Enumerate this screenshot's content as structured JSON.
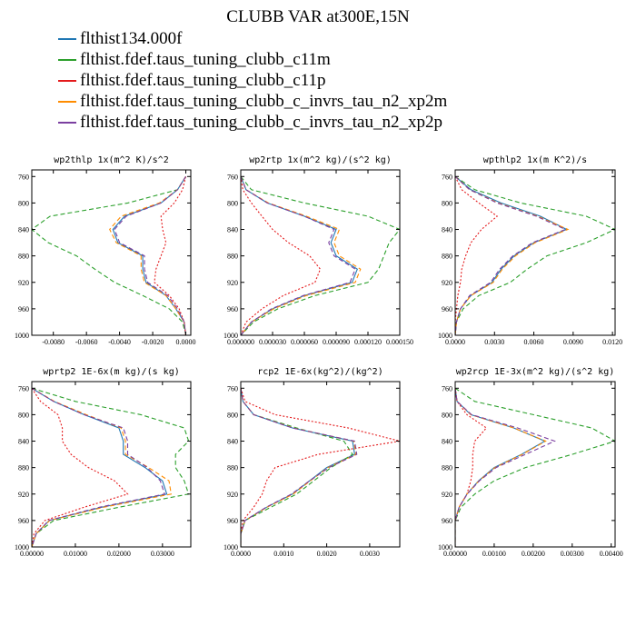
{
  "title": "CLUBB VAR at300E,15N",
  "legend": [
    {
      "label": "flthist134.000f",
      "color": "#1f77b4"
    },
    {
      "label": "flthist.fdef.taus_tuning_clubb_c11m",
      "color": "#2ca02c"
    },
    {
      "label": "flthist.fdef.taus_tuning_clubb_c11p",
      "color": "#e41a1c"
    },
    {
      "label": "flthist.fdef.taus_tuning_clubb_c_invrs_tau_n2_xp2m",
      "color": "#ff8c00"
    },
    {
      "label": "flthist.fdef.taus_tuning_clubb_c_invrs_tau_n2_xp2p",
      "color": "#7b3fa0"
    }
  ],
  "chart_data": [
    {
      "type": "line",
      "title": "wp2thlp  1x(m^2 K)/s^2",
      "xlim": [
        -0.0093,
        0.0003
      ],
      "ylim": [
        1000,
        750
      ],
      "xticks": [
        -0.008,
        -0.006,
        -0.004,
        -0.002,
        0.0
      ],
      "xtick_labels": [
        "-0.0080",
        "-0.0060",
        "-0.0040",
        "-0.0020",
        "0.0000"
      ],
      "yticks": [
        760,
        800,
        840,
        880,
        920,
        960,
        1000
      ],
      "y": [
        760,
        780,
        800,
        820,
        840,
        860,
        880,
        900,
        920,
        940,
        960,
        980,
        1000
      ],
      "series": [
        {
          "name": "flthist134.000f",
          "dash": "solid",
          "values": [
            0,
            -0.0005,
            -0.0015,
            -0.0037,
            -0.0044,
            -0.0041,
            -0.0026,
            -0.0026,
            -0.0024,
            -0.0012,
            -0.0006,
            -0.0001,
            0
          ]
        },
        {
          "name": "flthist.fdef.taus_tuning_clubb_c11m",
          "dash": "dashed",
          "values": [
            0,
            -0.0005,
            -0.0035,
            -0.0082,
            -0.0093,
            -0.0083,
            -0.0066,
            -0.0055,
            -0.0043,
            -0.0026,
            -0.001,
            -0.0002,
            0
          ]
        },
        {
          "name": "flthist.fdef.taus_tuning_clubb_c11p",
          "dash": "dotted",
          "values": [
            0,
            -0.0002,
            -0.0007,
            -0.0015,
            -0.0014,
            -0.0012,
            -0.0015,
            -0.0018,
            -0.0019,
            -0.001,
            -0.0004,
            -0.0001,
            0
          ]
        },
        {
          "name": "flthist.fdef.taus_tuning_clubb_c_invrs_tau_n2_xp2m",
          "dash": "dashed",
          "values": [
            0,
            -0.0005,
            -0.0016,
            -0.0039,
            -0.0046,
            -0.0042,
            -0.0027,
            -0.0027,
            -0.0025,
            -0.0012,
            -0.0006,
            -0.0001,
            0
          ]
        },
        {
          "name": "flthist.fdef.taus_tuning_clubb_c_invrs_tau_n2_xp2p",
          "dash": "dashed",
          "values": [
            0,
            -0.0005,
            -0.0015,
            -0.0036,
            -0.0043,
            -0.004,
            -0.0025,
            -0.0025,
            -0.0023,
            -0.0011,
            -0.0005,
            -0.0001,
            0
          ]
        }
      ]
    },
    {
      "type": "line",
      "title": "wp2rtp  1x(m^2 kg)/(s^2 kg)",
      "xlim": [
        0,
        0.00015
      ],
      "ylim": [
        1000,
        750
      ],
      "xticks": [
        0,
        3e-05,
        6e-05,
        9e-05,
        0.00012,
        0.00015
      ],
      "xtick_labels": [
        "0.000000",
        "0.000030",
        "0.000060",
        "0.000090",
        "0.000120",
        "0.000150"
      ],
      "yticks": [
        760,
        800,
        840,
        880,
        920,
        960,
        1000
      ],
      "y": [
        760,
        780,
        800,
        820,
        840,
        860,
        880,
        900,
        920,
        940,
        960,
        980,
        1000
      ],
      "series": [
        {
          "name": "flthist134.000f",
          "dash": "solid",
          "values": [
            0,
            5e-06,
            2.5e-05,
            6e-05,
            9e-05,
            8.5e-05,
            9e-05,
            0.00011,
            0.000105,
            6e-05,
            3e-05,
            1e-05,
            0
          ]
        },
        {
          "name": "flthist.fdef.taus_tuning_clubb_c11m",
          "dash": "dashed",
          "values": [
            0,
            1e-05,
            6e-05,
            0.00012,
            0.00015,
            0.00014,
            0.000135,
            0.00013,
            0.00012,
            7e-05,
            3.5e-05,
            1.2e-05,
            0
          ]
        },
        {
          "name": "flthist.fdef.taus_tuning_clubb_c11p",
          "dash": "dotted",
          "values": [
            0,
            2e-06,
            1e-05,
            2e-05,
            3e-05,
            4.5e-05,
            6.5e-05,
            7.5e-05,
            7e-05,
            4e-05,
            2e-05,
            5e-06,
            0
          ]
        },
        {
          "name": "flthist.fdef.taus_tuning_clubb_c_invrs_tau_n2_xp2m",
          "dash": "dashed",
          "values": [
            0,
            5e-06,
            2.6e-05,
            6.2e-05,
            9.3e-05,
            8.8e-05,
            9.3e-05,
            0.000113,
            0.000108,
            6.2e-05,
            3.1e-05,
            1e-05,
            0
          ]
        },
        {
          "name": "flthist.fdef.taus_tuning_clubb_c_invrs_tau_n2_xp2p",
          "dash": "dashed",
          "values": [
            0,
            5e-06,
            2.5e-05,
            6e-05,
            8.8e-05,
            8.3e-05,
            8.8e-05,
            0.000108,
            0.000103,
            5.9e-05,
            2.9e-05,
            1e-05,
            0
          ]
        }
      ]
    },
    {
      "type": "line",
      "title": "wpthlp2  1x(m K^2)/s",
      "xlim": [
        0,
        0.0122
      ],
      "ylim": [
        1000,
        750
      ],
      "xticks": [
        0,
        0.003,
        0.006,
        0.009,
        0.012
      ],
      "xtick_labels": [
        "0.0000",
        "0.0030",
        "0.0060",
        "0.0090",
        "0.0120"
      ],
      "yticks": [
        760,
        800,
        840,
        880,
        920,
        960,
        1000
      ],
      "y": [
        760,
        780,
        800,
        820,
        840,
        860,
        880,
        900,
        920,
        940,
        960,
        980,
        1000
      ],
      "series": [
        {
          "name": "flthist134.000f",
          "dash": "solid",
          "values": [
            0,
            0.0012,
            0.0035,
            0.0065,
            0.0085,
            0.006,
            0.0045,
            0.0035,
            0.0028,
            0.0012,
            0.0004,
            0.0001,
            0
          ]
        },
        {
          "name": "flthist.fdef.taus_tuning_clubb_c11m",
          "dash": "dashed",
          "values": [
            0,
            0.0015,
            0.005,
            0.01,
            0.0122,
            0.01,
            0.007,
            0.0055,
            0.0042,
            0.0018,
            0.0006,
            0.0001,
            0
          ]
        },
        {
          "name": "flthist.fdef.taus_tuning_clubb_c11p",
          "dash": "dotted",
          "values": [
            0,
            0.0005,
            0.0018,
            0.0032,
            0.002,
            0.0012,
            0.0008,
            0.0005,
            0.0004,
            0.0002,
            0.0001,
            0.0,
            0
          ]
        },
        {
          "name": "flthist.fdef.taus_tuning_clubb_c_invrs_tau_n2_xp2m",
          "dash": "dashed",
          "values": [
            0,
            0.0011,
            0.0033,
            0.0063,
            0.0086,
            0.0061,
            0.0046,
            0.0036,
            0.0029,
            0.0012,
            0.0004,
            0.0001,
            0
          ]
        },
        {
          "name": "flthist.fdef.taus_tuning_clubb_c_invrs_tau_n2_xp2p",
          "dash": "dashed",
          "values": [
            0,
            0.0011,
            0.0032,
            0.0062,
            0.0084,
            0.0059,
            0.0044,
            0.0034,
            0.0027,
            0.0011,
            0.0004,
            0.0001,
            0
          ]
        }
      ]
    },
    {
      "type": "line",
      "title": "wprtp2  1E-6x(m kg)/(s kg)",
      "xlim": [
        0,
        0.0365
      ],
      "ylim": [
        1000,
        750
      ],
      "xticks": [
        0,
        0.01,
        0.02,
        0.03
      ],
      "xtick_labels": [
        "0.00000",
        "0.01000",
        "0.02000",
        "0.03000"
      ],
      "yticks": [
        760,
        800,
        840,
        880,
        920,
        960,
        1000
      ],
      "y": [
        760,
        780,
        800,
        820,
        840,
        860,
        880,
        900,
        920,
        940,
        960,
        980,
        1000
      ],
      "series": [
        {
          "name": "flthist134.000f",
          "dash": "solid",
          "values": [
            0,
            0.005,
            0.012,
            0.02,
            0.021,
            0.021,
            0.026,
            0.03,
            0.031,
            0.016,
            0.004,
            0.001,
            0
          ]
        },
        {
          "name": "flthist.fdef.taus_tuning_clubb_c11m",
          "dash": "dashed",
          "values": [
            0,
            0.01,
            0.025,
            0.035,
            0.036,
            0.033,
            0.033,
            0.035,
            0.036,
            0.02,
            0.005,
            0.001,
            0
          ]
        },
        {
          "name": "flthist.fdef.taus_tuning_clubb_c11p",
          "dash": "dotted",
          "values": [
            0,
            0.002,
            0.006,
            0.007,
            0.007,
            0.009,
            0.013,
            0.019,
            0.022,
            0.012,
            0.003,
            0.0005,
            0
          ]
        },
        {
          "name": "flthist.fdef.taus_tuning_clubb_c_invrs_tau_n2_xp2m",
          "dash": "dashed",
          "values": [
            0,
            0.0052,
            0.0125,
            0.0205,
            0.0215,
            0.0215,
            0.0268,
            0.0315,
            0.032,
            0.0165,
            0.0041,
            0.001,
            0
          ]
        },
        {
          "name": "flthist.fdef.taus_tuning_clubb_c_invrs_tau_n2_xp2p",
          "dash": "dashed",
          "values": [
            0,
            0.005,
            0.012,
            0.021,
            0.022,
            0.022,
            0.0265,
            0.0295,
            0.0305,
            0.0155,
            0.0039,
            0.001,
            0
          ]
        }
      ]
    },
    {
      "type": "line",
      "title": "rcp2  1E-6x(kg^2)/(kg^2)",
      "xlim": [
        0,
        0.0037
      ],
      "ylim": [
        1000,
        750
      ],
      "xticks": [
        0,
        0.001,
        0.002,
        0.003
      ],
      "xtick_labels": [
        "0.0000",
        "0.0010",
        "0.0020",
        "0.0030"
      ],
      "yticks": [
        760,
        800,
        840,
        880,
        920,
        960,
        1000
      ],
      "y": [
        760,
        780,
        800,
        820,
        840,
        860,
        880,
        900,
        920,
        940,
        960,
        980,
        1000
      ],
      "series": [
        {
          "name": "flthist134.000f",
          "dash": "solid",
          "values": [
            0,
            5e-05,
            0.0003,
            0.0012,
            0.0026,
            0.00265,
            0.002,
            0.0016,
            0.0012,
            0.0006,
            0.0001,
            0,
            0
          ]
        },
        {
          "name": "flthist.fdef.taus_tuning_clubb_c11m",
          "dash": "dashed",
          "values": [
            0,
            5e-05,
            0.0003,
            0.0013,
            0.0024,
            0.0026,
            0.0021,
            0.0017,
            0.0013,
            0.0007,
            0.0001,
            0,
            0
          ]
        },
        {
          "name": "flthist.fdef.taus_tuning_clubb_c11p",
          "dash": "dotted",
          "values": [
            0,
            0.0001,
            0.0008,
            0.0025,
            0.0037,
            0.0018,
            0.0008,
            0.0006,
            0.0005,
            0.0003,
            5e-05,
            0,
            0
          ]
        },
        {
          "name": "flthist.fdef.taus_tuning_clubb_c_invrs_tau_n2_xp2m",
          "dash": "dashed",
          "values": [
            0,
            5e-05,
            0.0003,
            0.00122,
            0.00263,
            0.00268,
            0.00203,
            0.00162,
            0.00122,
            0.00061,
            0.0001,
            0,
            0
          ]
        },
        {
          "name": "flthist.fdef.taus_tuning_clubb_c_invrs_tau_n2_xp2p",
          "dash": "dashed",
          "values": [
            0,
            5e-05,
            0.0003,
            0.0012,
            0.00265,
            0.0027,
            0.00205,
            0.0016,
            0.00118,
            0.00059,
            0.0001,
            0,
            0
          ]
        }
      ]
    },
    {
      "type": "line",
      "title": "wp2rcp  1E-3x(m^2 kg)/(s^2 kg)",
      "xlim": [
        0,
        0.0041
      ],
      "ylim": [
        1000,
        750
      ],
      "xticks": [
        0,
        0.001,
        0.002,
        0.003,
        0.004
      ],
      "xtick_labels": [
        "0.00000",
        "0.00100",
        "0.00200",
        "0.00300",
        "0.00400"
      ],
      "yticks": [
        760,
        800,
        840,
        880,
        920,
        960,
        1000
      ],
      "y": [
        760,
        780,
        800,
        820,
        840,
        860,
        880,
        900,
        920,
        940,
        960,
        980,
        1000
      ],
      "series": [
        {
          "name": "flthist134.000f",
          "dash": "solid",
          "values": [
            0,
            5e-05,
            0.0004,
            0.0015,
            0.0023,
            0.0017,
            0.001,
            0.0006,
            0.0003,
            0.0001,
            0,
            0,
            0
          ]
        },
        {
          "name": "flthist.fdef.taus_tuning_clubb_c11m",
          "dash": "dashed",
          "values": [
            0,
            0.0005,
            0.002,
            0.0035,
            0.0041,
            0.003,
            0.0018,
            0.001,
            0.0005,
            0.00015,
            0,
            0,
            0
          ]
        },
        {
          "name": "flthist.fdef.taus_tuning_clubb_c11p",
          "dash": "dotted",
          "values": [
            0,
            5e-05,
            0.0003,
            0.0008,
            0.0005,
            0.00045,
            0.00045,
            0.0004,
            0.0003,
            0.0001,
            0,
            0,
            0
          ]
        },
        {
          "name": "flthist.fdef.taus_tuning_clubb_c_invrs_tau_n2_xp2m",
          "dash": "dashed",
          "values": [
            0,
            5e-05,
            0.0004,
            0.0015,
            0.00232,
            0.00172,
            0.00102,
            0.00061,
            0.0003,
            0.0001,
            0,
            0,
            0
          ]
        },
        {
          "name": "flthist.fdef.taus_tuning_clubb_c_invrs_tau_n2_xp2p",
          "dash": "dashed",
          "values": [
            0,
            5e-05,
            0.00042,
            0.0016,
            0.00255,
            0.0018,
            0.00105,
            0.00062,
            0.00031,
            0.0001,
            0,
            0,
            0
          ]
        }
      ]
    }
  ]
}
